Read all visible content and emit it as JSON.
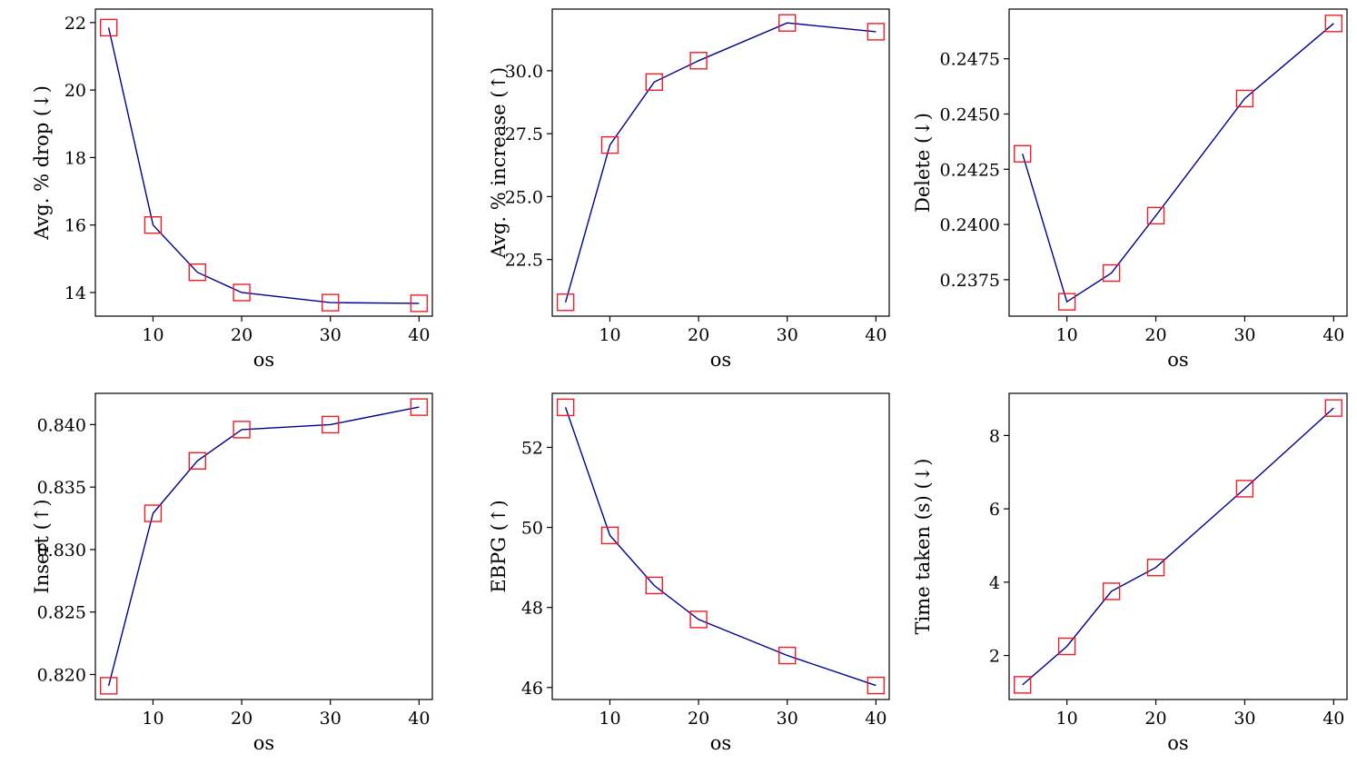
{
  "chart_data": [
    {
      "type": "line",
      "xlabel": "os",
      "ylabel": "Avg. % drop (↓)",
      "x": [
        5,
        10,
        15,
        20,
        30,
        40
      ],
      "series": [
        {
          "values": [
            21.85,
            16.0,
            14.6,
            14.0,
            13.7,
            13.68
          ]
        }
      ],
      "xlim": [
        3.5,
        41.5
      ],
      "ylim": [
        13.3,
        22.4
      ],
      "xticks": [
        10,
        20,
        30,
        40
      ],
      "xtick_labels": [
        "10",
        "20",
        "30",
        "40"
      ],
      "yticks": [
        14,
        16,
        18,
        20,
        22
      ],
      "ytick_labels": [
        "14",
        "16",
        "18",
        "20",
        "22"
      ],
      "grid": false,
      "line_color": "#00008b",
      "marker_color": "#ee1c25",
      "marker": "square"
    },
    {
      "type": "line",
      "xlabel": "os",
      "ylabel": "Avg. % increase (↑)",
      "x": [
        5,
        10,
        15,
        20,
        30,
        40
      ],
      "series": [
        {
          "values": [
            20.8,
            27.05,
            29.55,
            30.4,
            31.9,
            31.55
          ]
        }
      ],
      "xlim": [
        3.5,
        41.5
      ],
      "ylim": [
        20.25,
        32.45
      ],
      "xticks": [
        10,
        20,
        30,
        40
      ],
      "xtick_labels": [
        "10",
        "20",
        "30",
        "40"
      ],
      "yticks": [
        22.5,
        25.0,
        27.5,
        30.0
      ],
      "ytick_labels": [
        "22.5",
        "25.0",
        "27.5",
        "30.0"
      ],
      "grid": false,
      "line_color": "#00008b",
      "marker_color": "#ee1c25",
      "marker": "square"
    },
    {
      "type": "line",
      "xlabel": "os",
      "ylabel": "Delete (↓)",
      "x": [
        5,
        10,
        15,
        20,
        30,
        40
      ],
      "series": [
        {
          "values": [
            0.2432,
            0.2365,
            0.2378,
            0.2404,
            0.2457,
            0.2491
          ]
        }
      ],
      "xlim": [
        3.5,
        41.5
      ],
      "ylim": [
        0.23585,
        0.24975
      ],
      "xticks": [
        10,
        20,
        30,
        40
      ],
      "xtick_labels": [
        "10",
        "20",
        "30",
        "40"
      ],
      "yticks": [
        0.2375,
        0.24,
        0.2425,
        0.245,
        0.2475
      ],
      "ytick_labels": [
        "0.2375",
        "0.2400",
        "0.2425",
        "0.2450",
        "0.2475"
      ],
      "grid": false,
      "line_color": "#00008b",
      "marker_color": "#ee1c25",
      "marker": "square"
    },
    {
      "type": "line",
      "xlabel": "os",
      "ylabel": "Insert (↑)",
      "x": [
        5,
        10,
        15,
        20,
        30,
        40
      ],
      "series": [
        {
          "values": [
            0.8191,
            0.8329,
            0.8371,
            0.8396,
            0.84,
            0.8414
          ]
        }
      ],
      "xlim": [
        3.5,
        41.5
      ],
      "ylim": [
        0.818,
        0.8425
      ],
      "xticks": [
        10,
        20,
        30,
        40
      ],
      "xtick_labels": [
        "10",
        "20",
        "30",
        "40"
      ],
      "yticks": [
        0.82,
        0.825,
        0.83,
        0.835,
        0.84
      ],
      "ytick_labels": [
        "0.820",
        "0.825",
        "0.830",
        "0.835",
        "0.840"
      ],
      "grid": false,
      "line_color": "#00008b",
      "marker_color": "#ee1c25",
      "marker": "square"
    },
    {
      "type": "line",
      "xlabel": "os",
      "ylabel": "EBPG (↑)",
      "x": [
        5,
        10,
        15,
        20,
        30,
        40
      ],
      "series": [
        {
          "values": [
            53.0,
            49.8,
            48.55,
            47.7,
            46.8,
            46.05
          ]
        }
      ],
      "xlim": [
        3.5,
        41.5
      ],
      "ylim": [
        45.7,
        53.35
      ],
      "xticks": [
        10,
        20,
        30,
        40
      ],
      "xtick_labels": [
        "10",
        "20",
        "30",
        "40"
      ],
      "yticks": [
        46,
        48,
        50,
        52
      ],
      "ytick_labels": [
        "46",
        "48",
        "50",
        "52"
      ],
      "grid": false,
      "line_color": "#00008b",
      "marker_color": "#ee1c25",
      "marker": "square"
    },
    {
      "type": "line",
      "xlabel": "os",
      "ylabel": "Time taken (s) (↓)",
      "x": [
        5,
        10,
        15,
        20,
        30,
        40
      ],
      "series": [
        {
          "values": [
            1.2,
            2.25,
            3.75,
            4.4,
            6.55,
            8.75
          ]
        }
      ],
      "xlim": [
        3.5,
        41.5
      ],
      "ylim": [
        0.8,
        9.15
      ],
      "xticks": [
        10,
        20,
        30,
        40
      ],
      "xtick_labels": [
        "10",
        "20",
        "30",
        "40"
      ],
      "yticks": [
        2,
        4,
        6,
        8
      ],
      "ytick_labels": [
        "2",
        "4",
        "6",
        "8"
      ],
      "grid": false,
      "line_color": "#00008b",
      "marker_color": "#ee1c25",
      "marker": "square"
    }
  ]
}
